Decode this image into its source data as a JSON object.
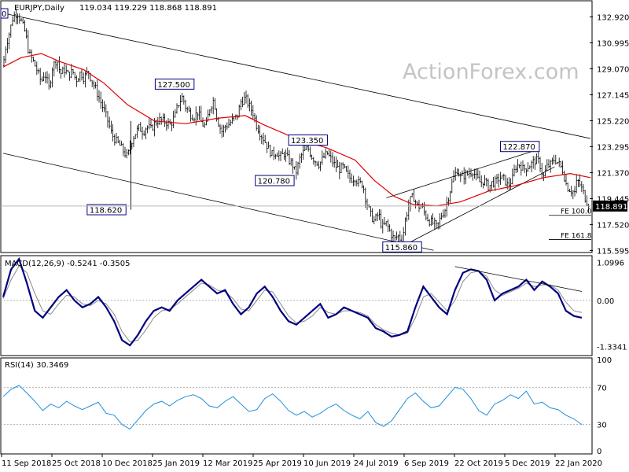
{
  "header": {
    "symbol_label": "EURJPY,Daily",
    "ohlc_text": "119.034 119.229 118.868 118.891",
    "corner_badge": "0"
  },
  "watermark": "ActionForex.com",
  "chart_data": [
    {
      "type": "candlestick",
      "title": "EURJPY,Daily",
      "ylim": [
        115.5,
        134.0
      ],
      "price_axis_ticks": [
        "132.920",
        "130.995",
        "129.070",
        "127.145",
        "125.220",
        "123.295",
        "121.370",
        "119.445",
        "117.520",
        "115.595"
      ],
      "current_price_label": "118.891",
      "x_tick_labels": [
        "11 Sep 2018",
        "25 Oct 2018",
        "10 Dec 2018",
        "25 Jan 2019",
        "12 Mar 2019",
        "25 Apr 2019",
        "10 Jun 2019",
        "24 Jul 2019",
        "6 Sep 2019",
        "22 Oct 2019",
        "5 Dec 2019",
        "22 Jan 2020"
      ],
      "price_path": [
        [
          "11 Sep 2018",
          129.3
        ],
        [
          "13 Sep 2018",
          130.6
        ],
        [
          "17 Sep 2018",
          131.9
        ],
        [
          "20 Sep 2018",
          133.0
        ],
        [
          "24 Sep 2018",
          133.2
        ],
        [
          "27 Sep 2018",
          132.6
        ],
        [
          "1 Oct 2018",
          131.7
        ],
        [
          "4 Oct 2018",
          130.2
        ],
        [
          "8 Oct 2018",
          129.6
        ],
        [
          "11 Oct 2018",
          129.0
        ],
        [
          "15 Oct 2018",
          128.1
        ],
        [
          "18 Oct 2018",
          128.8
        ],
        [
          "22 Oct 2018",
          127.6
        ],
        [
          "25 Oct 2018",
          129.2
        ],
        [
          "29 Oct 2018",
          129.8
        ],
        [
          "1 Nov 2018",
          128.7
        ],
        [
          "5 Nov 2018",
          129.0
        ],
        [
          "8 Nov 2018",
          128.6
        ],
        [
          "12 Nov 2018",
          128.9
        ],
        [
          "15 Nov 2018",
          128.2
        ],
        [
          "19 Nov 2018",
          128.8
        ],
        [
          "22 Nov 2018",
          128.4
        ],
        [
          "26 Nov 2018",
          128.9
        ],
        [
          "29 Nov 2018",
          128.2
        ],
        [
          "3 Dec 2018",
          127.5
        ],
        [
          "6 Dec 2018",
          126.8
        ],
        [
          "10 Dec 2018",
          126.0
        ],
        [
          "13 Dec 2018",
          125.3
        ],
        [
          "17 Dec 2018",
          124.2
        ],
        [
          "20 Dec 2018",
          123.8
        ],
        [
          "24 Dec 2018",
          123.4
        ],
        [
          "27 Dec 2018",
          123.0
        ],
        [
          "31 Dec 2018",
          122.5
        ],
        [
          "3 Jan 2019",
          123.6
        ],
        [
          "7 Jan 2019",
          124.3
        ],
        [
          "10 Jan 2019",
          124.7
        ],
        [
          "14 Jan 2019",
          124.4
        ],
        [
          "17 Jan 2019",
          124.8
        ],
        [
          "21 Jan 2019",
          124.6
        ],
        [
          "24 Jan 2019",
          125.0
        ],
        [
          "28 Jan 2019",
          125.3
        ],
        [
          "31 Jan 2019",
          125.2
        ],
        [
          "4 Feb 2019",
          125.1
        ],
        [
          "7 Feb 2019",
          124.9
        ],
        [
          "11 Feb 2019",
          125.5
        ],
        [
          "14 Feb 2019",
          126.4
        ],
        [
          "18 Feb 2019",
          127.0
        ],
        [
          "21 Feb 2019",
          126.2
        ],
        [
          "25 Feb 2019",
          125.7
        ],
        [
          "28 Feb 2019",
          125.5
        ],
        [
          "4 Mar 2019",
          125.9
        ],
        [
          "7 Mar 2019",
          125.0
        ],
        [
          "11 Mar 2019",
          124.8
        ],
        [
          "14 Mar 2019",
          126.1
        ],
        [
          "18 Mar 2019",
          126.8
        ],
        [
          "21 Mar 2019",
          125.3
        ],
        [
          "25 Mar 2019",
          124.4
        ],
        [
          "28 Mar 2019",
          124.8
        ],
        [
          "1 Apr 2019",
          125.0
        ],
        [
          "4 Apr 2019",
          125.3
        ],
        [
          "8 Apr 2019",
          125.6
        ],
        [
          "11 Apr 2019",
          126.6
        ],
        [
          "15 Apr 2019",
          126.9
        ],
        [
          "18 Apr 2019",
          126.4
        ],
        [
          "22 Apr 2019",
          125.8
        ],
        [
          "25 Apr 2019",
          124.9
        ],
        [
          "29 Apr 2019",
          124.2
        ],
        [
          "2 May 2019",
          123.8
        ],
        [
          "6 May 2019",
          123.1
        ],
        [
          "9 May 2019",
          122.7
        ],
        [
          "13 May 2019",
          122.9
        ],
        [
          "16 May 2019",
          122.5
        ],
        [
          "20 May 2019",
          122.8
        ],
        [
          "23 May 2019",
          122.4
        ],
        [
          "27 May 2019",
          122.0
        ],
        [
          "30 May 2019",
          121.3
        ],
        [
          "3 Jun 2019",
          122.5
        ],
        [
          "6 Jun 2019",
          122.9
        ],
        [
          "10 Jun 2019",
          123.2
        ],
        [
          "13 Jun 2019",
          122.6
        ],
        [
          "17 Jun 2019",
          122.2
        ],
        [
          "20 Jun 2019",
          122.0
        ],
        [
          "24 Jun 2019",
          122.5
        ],
        [
          "27 Jun 2019",
          122.8
        ],
        [
          "1 Jul 2019",
          122.3
        ],
        [
          "4 Jul 2019",
          121.9
        ],
        [
          "8 Jul 2019",
          121.6
        ],
        [
          "11 Jul 2019",
          121.8
        ],
        [
          "15 Jul 2019",
          121.2
        ],
        [
          "18 Jul 2019",
          120.9
        ],
        [
          "22 Jul 2019",
          121.0
        ],
        [
          "25 Jul 2019",
          120.6
        ],
        [
          "29 Jul 2019",
          120.5
        ],
        [
          "1 Aug 2019",
          119.2
        ],
        [
          "5 Aug 2019",
          118.2
        ],
        [
          "8 Aug 2019",
          117.8
        ],
        [
          "12 Aug 2019",
          118.3
        ],
        [
          "15 Aug 2019",
          117.3
        ],
        [
          "19 Aug 2019",
          117.6
        ],
        [
          "22 Aug 2019",
          117.0
        ],
        [
          "26 Aug 2019",
          116.4
        ],
        [
          "29 Aug 2019",
          116.7
        ],
        [
          "2 Sep 2019",
          116.3
        ],
        [
          "5 Sep 2019",
          118.0
        ],
        [
          "9 Sep 2019",
          119.3
        ],
        [
          "12 Sep 2019",
          119.6
        ],
        [
          "16 Sep 2019",
          118.8
        ],
        [
          "19 Sep 2019",
          118.9
        ],
        [
          "23 Sep 2019",
          118.2
        ],
        [
          "26 Sep 2019",
          117.8
        ],
        [
          "30 Sep 2019",
          117.6
        ],
        [
          "3 Oct 2019",
          117.3
        ],
        [
          "7 Oct 2019",
          118.2
        ],
        [
          "10 Oct 2019",
          118.6
        ],
        [
          "14 Oct 2019",
          119.8
        ],
        [
          "17 Oct 2019",
          120.8
        ],
        [
          "21 Oct 2019",
          121.6
        ],
        [
          "24 Oct 2019",
          121.0
        ],
        [
          "28 Oct 2019",
          121.2
        ],
        [
          "31 Oct 2019",
          121.3
        ],
        [
          "4 Nov 2019",
          121.5
        ],
        [
          "7 Nov 2019",
          121.0
        ],
        [
          "11 Nov 2019",
          120.6
        ],
        [
          "14 Nov 2019",
          120.8
        ],
        [
          "18 Nov 2019",
          120.3
        ],
        [
          "21 Nov 2019",
          120.6
        ],
        [
          "25 Nov 2019",
          120.7
        ],
        [
          "28 Nov 2019",
          121.0
        ],
        [
          "2 Dec 2019",
          120.9
        ],
        [
          "5 Dec 2019",
          120.4
        ],
        [
          "9 Dec 2019",
          120.8
        ],
        [
          "12 Dec 2019",
          121.8
        ],
        [
          "16 Dec 2019",
          122.0
        ],
        [
          "19 Dec 2019",
          121.6
        ],
        [
          "23 Dec 2019",
          121.8
        ],
        [
          "26 Dec 2019",
          122.0
        ],
        [
          "30 Dec 2019",
          122.3
        ],
        [
          "2 Jan 2020",
          122.2
        ],
        [
          "6 Jan 2020",
          121.0
        ],
        [
          "9 Jan 2020",
          121.8
        ],
        [
          "13 Jan 2020",
          122.0
        ],
        [
          "16 Jan 2020",
          122.4
        ],
        [
          "20 Jan 2020",
          122.0
        ],
        [
          "23 Jan 2020",
          121.6
        ],
        [
          "27 Jan 2020",
          120.3
        ],
        [
          "30 Jan 2020",
          120.1
        ],
        [
          "3 Feb 2020",
          119.9
        ],
        [
          "5 Feb 2020",
          120.8
        ],
        [
          "7 Feb 2020",
          120.6
        ],
        [
          "11 Feb 2020",
          119.8
        ],
        [
          "13 Feb 2020",
          119.3
        ],
        [
          "17 Feb 2020",
          118.89
        ]
      ],
      "moving_average": [
        [
          "11 Sep 2018",
          129.2
        ],
        [
          "27 Sep 2018",
          129.9
        ],
        [
          "15 Oct 2018",
          130.2
        ],
        [
          "1 Nov 2018",
          129.6
        ],
        [
          "22 Nov 2018",
          129.0
        ],
        [
          "10 Dec 2018",
          128.0
        ],
        [
          "31 Dec 2018",
          126.4
        ],
        [
          "24 Jan 2019",
          125.2
        ],
        [
          "21 Feb 2019",
          125.0
        ],
        [
          "21 Mar 2019",
          125.4
        ],
        [
          "15 Apr 2019",
          125.6
        ],
        [
          "2 May 2019",
          124.9
        ],
        [
          "30 May 2019",
          123.9
        ],
        [
          "27 Jun 2019",
          123.2
        ],
        [
          "22 Jul 2019",
          122.3
        ],
        [
          "8 Aug 2019",
          120.8
        ],
        [
          "26 Aug 2019",
          119.6
        ],
        [
          "12 Sep 2019",
          119.0
        ],
        [
          "3 Oct 2019",
          118.9
        ],
        [
          "24 Oct 2019",
          119.2
        ],
        [
          "18 Nov 2019",
          120.0
        ],
        [
          "12 Dec 2019",
          120.4
        ],
        [
          "6 Jan 2020",
          121.0
        ],
        [
          "30 Jan 2020",
          121.3
        ],
        [
          "17 Feb 2020",
          121.0
        ]
      ],
      "annotations": [
        {
          "label": "127.500",
          "date": "11 Feb 2019",
          "price": 127.5
        },
        {
          "label": "118.620",
          "date": "31 Dec 2018",
          "price": 118.62
        },
        {
          "label": "123.350",
          "date": "10 Jun 2019",
          "price": 123.35
        },
        {
          "label": "120.780",
          "date": "30 May 2019",
          "price": 120.78
        },
        {
          "label": "115.860",
          "date": "2 Sep 2019",
          "price": 115.86
        },
        {
          "label": "122.870",
          "date": "16 Dec 2019",
          "price": 122.87
        }
      ],
      "fibonacci_levels": [
        {
          "label": "FE 100.0",
          "price": 118.2
        },
        {
          "label": "FE 161.8",
          "price": 116.4
        }
      ],
      "horizontal_line_price": 118.891,
      "trend_lines": [
        {
          "from": [
            "11 Sep 2018",
            133.2
          ],
          "to": [
            "17 Feb 2020",
            123.9
          ]
        },
        {
          "from": [
            "11 Sep 2018",
            122.8
          ],
          "to": [
            "30 Sep 2019",
            115.6
          ]
        },
        {
          "from": [
            "2 Sep 2019",
            115.9
          ],
          "to": [
            "16 Jan 2020",
            121.8
          ]
        },
        {
          "from": [
            "19 Aug 2019",
            119.5
          ],
          "to": [
            "2 Jan 2020",
            123.1
          ]
        }
      ]
    },
    {
      "type": "line",
      "title": "MACD(12,26,9) -0.5241 -0.3505",
      "series_name": "MACD(12,26,9)",
      "values_printed": [
        "-0.5241",
        "-0.3505"
      ],
      "ylim": [
        -1.55,
        1.25
      ],
      "axis_ticks": [
        "1.0996",
        "0.00",
        "-1.3341"
      ],
      "zero_line": 0.0,
      "macd_points": [
        0.1,
        0.9,
        1.2,
        0.5,
        -0.3,
        -0.5,
        -0.2,
        0.1,
        0.3,
        0.0,
        -0.2,
        -0.1,
        0.1,
        -0.2,
        -0.6,
        -1.15,
        -1.3,
        -1.0,
        -0.6,
        -0.3,
        -0.2,
        -0.3,
        0.0,
        0.2,
        0.4,
        0.6,
        0.4,
        0.2,
        0.3,
        -0.1,
        -0.4,
        -0.2,
        0.2,
        0.4,
        0.1,
        -0.3,
        -0.6,
        -0.7,
        -0.5,
        -0.3,
        -0.1,
        -0.5,
        -0.4,
        -0.2,
        -0.3,
        -0.4,
        -0.5,
        -0.8,
        -0.9,
        -1.05,
        -1.0,
        -0.9,
        -0.2,
        0.4,
        0.1,
        -0.2,
        -0.4,
        0.3,
        0.8,
        0.9,
        0.85,
        0.6,
        0.0,
        0.2,
        0.3,
        0.4,
        0.6,
        0.3,
        0.55,
        0.4,
        0.2,
        -0.3,
        -0.45,
        -0.5
      ],
      "signal_points": [
        0.05,
        0.6,
        1.0,
        0.8,
        0.2,
        -0.3,
        -0.4,
        -0.1,
        0.15,
        0.1,
        -0.1,
        -0.15,
        0.0,
        -0.1,
        -0.4,
        -0.9,
        -1.2,
        -1.15,
        -0.85,
        -0.5,
        -0.3,
        -0.25,
        -0.1,
        0.1,
        0.3,
        0.5,
        0.45,
        0.3,
        0.25,
        0.05,
        -0.25,
        -0.3,
        0.0,
        0.3,
        0.25,
        -0.1,
        -0.45,
        -0.65,
        -0.6,
        -0.45,
        -0.2,
        -0.35,
        -0.4,
        -0.3,
        -0.3,
        -0.35,
        -0.45,
        -0.7,
        -0.85,
        -0.95,
        -1.0,
        -0.95,
        -0.5,
        0.1,
        0.2,
        -0.05,
        -0.3,
        0.0,
        0.55,
        0.8,
        0.85,
        0.7,
        0.3,
        0.15,
        0.25,
        0.35,
        0.5,
        0.4,
        0.45,
        0.45,
        0.3,
        -0.05,
        -0.3,
        -0.35
      ],
      "trend_line": {
        "from": [
          57,
          0.98
        ],
        "to": [
          73,
          0.26
        ]
      }
    },
    {
      "type": "line",
      "title": "RSI(14) 30.3469",
      "series_name": "RSI(14)",
      "values_printed": [
        "30.3469"
      ],
      "ylim": [
        0,
        100
      ],
      "axis_ticks": [
        "100",
        "70",
        "30",
        "0"
      ],
      "reference_levels": [
        70,
        30
      ],
      "rsi_points": [
        60,
        68,
        72,
        64,
        55,
        45,
        52,
        48,
        55,
        50,
        46,
        50,
        54,
        42,
        40,
        30,
        25,
        35,
        45,
        52,
        55,
        50,
        56,
        60,
        62,
        58,
        50,
        48,
        55,
        60,
        52,
        44,
        46,
        58,
        63,
        55,
        45,
        40,
        44,
        38,
        42,
        48,
        52,
        45,
        40,
        36,
        44,
        32,
        28,
        34,
        46,
        58,
        64,
        55,
        48,
        50,
        60,
        70,
        68,
        58,
        45,
        40,
        52,
        56,
        62,
        58,
        66,
        52,
        54,
        48,
        46,
        40,
        36,
        30
      ]
    }
  ]
}
